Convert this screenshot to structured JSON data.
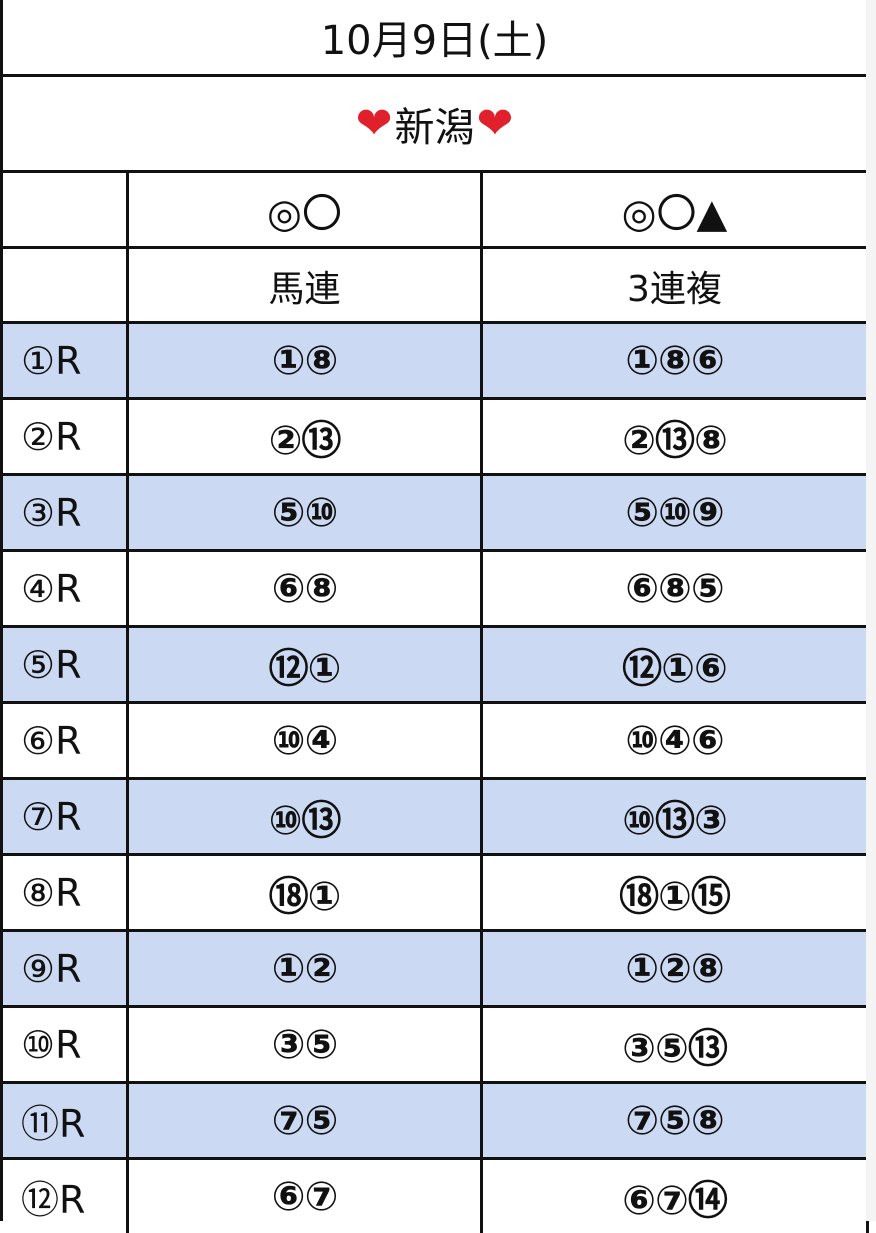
{
  "title": "10月9日(土)",
  "venue": {
    "left_heart": "❤",
    "name": "新潟",
    "right_heart": "❤"
  },
  "header": {
    "symbols_a": "◎〇",
    "symbols_b": "◎〇▲",
    "bet_a": "馬連",
    "bet_b": "3連複"
  },
  "races": [
    {
      "race": "①R",
      "umaren": "①⑧",
      "sanrenpuku": "①⑧⑥"
    },
    {
      "race": "②R",
      "umaren": "②⑬",
      "sanrenpuku": "②⑬⑧"
    },
    {
      "race": "③R",
      "umaren": "⑤⑩",
      "sanrenpuku": "⑤⑩⑨"
    },
    {
      "race": "④R",
      "umaren": "⑥⑧",
      "sanrenpuku": "⑥⑧⑤"
    },
    {
      "race": "⑤R",
      "umaren": "⑫①",
      "sanrenpuku": "⑫①⑥"
    },
    {
      "race": "⑥R",
      "umaren": "⑩④",
      "sanrenpuku": "⑩④⑥"
    },
    {
      "race": "⑦R",
      "umaren": "⑩⑬",
      "sanrenpuku": "⑩⑬③"
    },
    {
      "race": "⑧R",
      "umaren": "⑱①",
      "sanrenpuku": "⑱①⑮"
    },
    {
      "race": "⑨R",
      "umaren": "①②",
      "sanrenpuku": "①②⑧"
    },
    {
      "race": "⑩R",
      "umaren": "③⑤",
      "sanrenpuku": "③⑤⑬"
    },
    {
      "race": "⑪R",
      "umaren": "⑦⑤",
      "sanrenpuku": "⑦⑤⑧"
    },
    {
      "race": "⑫R",
      "umaren": "⑥⑦",
      "sanrenpuku": "⑥⑦⑭"
    }
  ],
  "colors": {
    "highlight_row": "#ccd9f3",
    "heart": "#e0202b",
    "grid": "#111111"
  }
}
